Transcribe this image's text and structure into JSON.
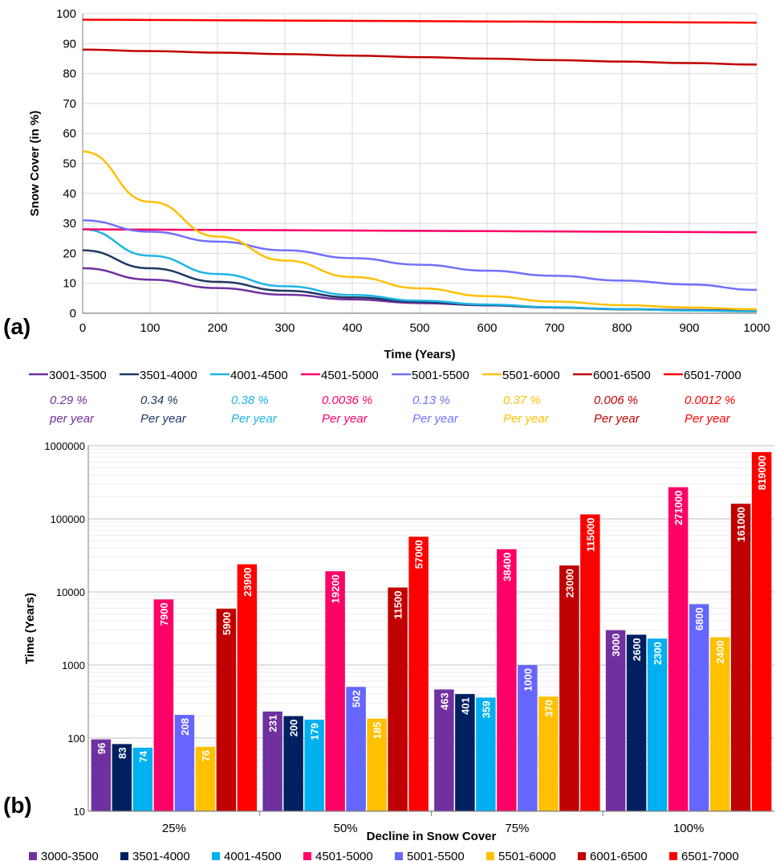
{
  "panel_a_label": "(a)",
  "panel_b_label": "(b)",
  "rates": [
    {
      "rate": "0.29 %",
      "unit": "per year",
      "color": "#7030A0"
    },
    {
      "rate": "0.34 %",
      "unit": "Per year",
      "color": "#1F3864"
    },
    {
      "rate": "0.38 %",
      "unit": "Per year",
      "color": "#1EB4E6"
    },
    {
      "rate": "0.0036 %",
      "unit": "Per year",
      "color": "#FF0066"
    },
    {
      "rate": "0.13 %",
      "unit": "Per year",
      "color": "#7070FF"
    },
    {
      "rate": "0.37 %",
      "unit": "Per year",
      "color": "#FFC000"
    },
    {
      "rate": "0.006 %",
      "unit": "Per year",
      "color": "#C00000"
    },
    {
      "rate": "0.0012 %",
      "unit": "Per year",
      "color": "#FF0000"
    }
  ],
  "chart_data": [
    {
      "type": "line",
      "xlabel": "Time (Years)",
      "ylabel": "Snow Cover (in %)",
      "xlim": [
        0,
        1000
      ],
      "ylim": [
        0,
        100
      ],
      "xticks": [
        0,
        100,
        200,
        300,
        400,
        500,
        600,
        700,
        800,
        900,
        1000
      ],
      "yticks": [
        0,
        10,
        20,
        30,
        40,
        50,
        60,
        70,
        80,
        90,
        100
      ],
      "grid": true,
      "legend": "bottom",
      "x": [
        0,
        100,
        200,
        300,
        400,
        500,
        600,
        700,
        800,
        900,
        1000
      ],
      "series": [
        {
          "name": "3001-3500",
          "color": "#7030A0",
          "values": [
            15,
            11.2,
            8.4,
            6.2,
            4.6,
            3.4,
            2.6,
            1.9,
            1.4,
            1.1,
            0.8
          ]
        },
        {
          "name": "3501-4000",
          "color": "#1F3864",
          "values": [
            21,
            15.0,
            10.5,
            7.5,
            5.3,
            3.8,
            2.7,
            1.9,
            1.3,
            1.0,
            0.7
          ]
        },
        {
          "name": "4001-4500",
          "color": "#1EB4E6",
          "values": [
            28,
            19.2,
            13.1,
            9.0,
            6.1,
            4.2,
            2.9,
            2.0,
            1.4,
            0.9,
            0.6
          ]
        },
        {
          "name": "4501-5000",
          "color": "#FF0066",
          "values": [
            28,
            27.9,
            27.8,
            27.7,
            27.6,
            27.5,
            27.4,
            27.3,
            27.2,
            27.1,
            27.0
          ]
        },
        {
          "name": "5001-5500",
          "color": "#7070FF",
          "values": [
            31,
            27.2,
            23.9,
            21.0,
            18.4,
            16.2,
            14.2,
            12.5,
            10.9,
            9.6,
            7.8
          ]
        },
        {
          "name": "5501-6000",
          "color": "#FFC000",
          "values": [
            54,
            37.2,
            25.6,
            17.6,
            12.1,
            8.3,
            5.7,
            3.9,
            2.7,
            1.9,
            1.3
          ]
        },
        {
          "name": "6001-6500",
          "color": "#C00000",
          "values": [
            88,
            87.5,
            87.0,
            86.5,
            86.0,
            85.5,
            85.0,
            84.5,
            84.0,
            83.5,
            83.0
          ]
        },
        {
          "name": "6501-7000",
          "color": "#FF0000",
          "values": [
            98,
            97.9,
            97.8,
            97.7,
            97.6,
            97.5,
            97.4,
            97.3,
            97.2,
            97.1,
            97.0
          ]
        }
      ]
    },
    {
      "type": "bar",
      "xlabel": "Decline in Snow Cover",
      "ylabel": "Time (Years)",
      "yscale": "log",
      "ylim": [
        10,
        1000000
      ],
      "yticks": [
        "10",
        "100",
        "1000",
        "10000",
        "100000",
        "1000000"
      ],
      "grid": true,
      "legend": "bottom",
      "categories": [
        "25%",
        "50%",
        "75%",
        "100%"
      ],
      "series": [
        {
          "name": "3000-3500",
          "color": "#7030A0",
          "values": [
            96,
            231,
            463,
            3000
          ]
        },
        {
          "name": "3501-4000",
          "color": "#002060",
          "values": [
            83,
            200,
            401,
            2600
          ]
        },
        {
          "name": "4001-4500",
          "color": "#00B0F0",
          "values": [
            74,
            179,
            359,
            2300
          ]
        },
        {
          "name": "4501-5000",
          "color": "#FF0066",
          "values": [
            7900,
            19200,
            38400,
            271000
          ]
        },
        {
          "name": "5001-5500",
          "color": "#6666FF",
          "values": [
            208,
            502,
            1000,
            6800
          ]
        },
        {
          "name": "5501-6000",
          "color": "#FFC000",
          "values": [
            76,
            185,
            370,
            2400
          ]
        },
        {
          "name": "6001-6500",
          "color": "#C00000",
          "values": [
            5900,
            11500,
            23000,
            161000
          ]
        },
        {
          "name": "6501-7000",
          "color": "#FF0000",
          "values": [
            23900,
            57000,
            115000,
            819000
          ]
        }
      ]
    }
  ]
}
